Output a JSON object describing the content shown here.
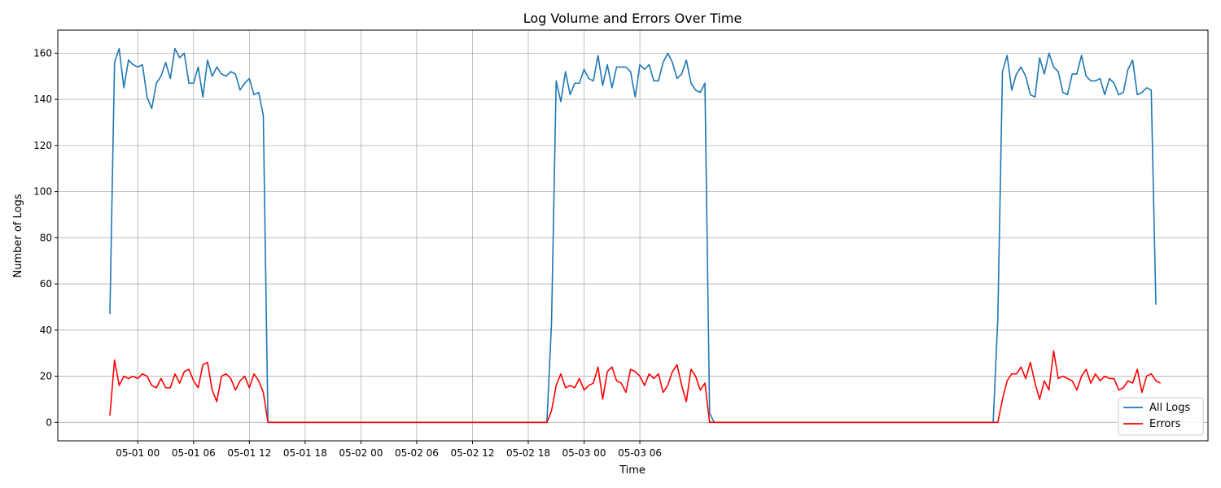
{
  "chart_data": {
    "type": "line",
    "title": "Log Volume and Errors Over Time",
    "xlabel": "Time",
    "ylabel": "Number of Logs",
    "x_start": "2024-04-30 21:00",
    "x_step_minutes": 30,
    "x_ticks": [
      "05-01 00",
      "05-01 06",
      "05-01 12",
      "05-01 18",
      "05-02 00",
      "05-02 06",
      "05-02 12",
      "05-02 18",
      "05-03 00",
      "05-03 06"
    ],
    "ylim": [
      -8,
      170
    ],
    "yticks": [
      0,
      20,
      40,
      60,
      80,
      100,
      120,
      140,
      160
    ],
    "grid": true,
    "legend_position": "bottom-right",
    "series": [
      {
        "name": "All Logs",
        "color": "#1f77b4",
        "values": [
          47,
          156,
          162,
          145,
          157,
          155,
          154,
          155,
          141,
          136,
          147,
          150,
          156,
          149,
          162,
          158,
          160,
          147,
          147,
          154,
          141,
          157,
          150,
          154,
          151,
          150,
          152,
          151,
          144,
          147,
          149,
          142,
          143,
          133,
          0,
          0,
          0,
          0,
          0,
          0,
          0,
          0,
          0,
          0,
          0,
          0,
          0,
          0,
          0,
          0,
          0,
          0,
          0,
          0,
          0,
          0,
          0,
          0,
          0,
          0,
          0,
          0,
          0,
          0,
          0,
          0,
          0,
          0,
          0,
          0,
          0,
          0,
          0,
          0,
          0,
          0,
          0,
          0,
          0,
          0,
          0,
          0,
          0,
          0,
          0,
          0,
          0,
          0,
          0,
          0,
          0,
          0,
          0,
          0,
          0,
          43,
          148,
          139,
          152,
          142,
          147,
          147,
          153,
          149,
          148,
          159,
          146,
          155,
          145,
          154,
          154,
          154,
          152,
          141,
          155,
          153,
          155,
          148,
          148,
          156,
          160,
          156,
          149,
          151,
          157,
          147,
          144,
          143,
          147,
          4,
          0,
          0,
          0,
          0,
          0,
          0,
          0,
          0,
          0,
          0,
          0,
          0,
          0,
          0,
          0,
          0,
          0,
          0,
          0,
          0,
          0,
          0,
          0,
          0,
          0,
          0,
          0,
          0,
          0,
          0,
          0,
          0,
          0,
          0,
          0,
          0,
          0,
          0,
          0,
          0,
          0,
          0,
          0,
          0,
          0,
          0,
          0,
          0,
          0,
          0,
          0,
          0,
          0,
          0,
          0,
          0,
          0,
          0,
          0,
          0,
          0,
          45,
          152,
          159,
          144,
          151,
          154,
          150,
          142,
          141,
          158,
          151,
          160,
          154,
          152,
          143,
          142,
          151,
          151,
          159,
          150,
          148,
          148,
          149,
          142,
          149,
          147,
          142,
          143,
          153,
          157,
          142,
          143,
          145,
          144,
          51
        ]
      },
      {
        "name": "Errors",
        "color": "#ff0000",
        "values": [
          3,
          27,
          16,
          20,
          19,
          20,
          19,
          21,
          20,
          16,
          15,
          19,
          15,
          15,
          21,
          17,
          22,
          23,
          18,
          15,
          25,
          26,
          14,
          9,
          20,
          21,
          19,
          14,
          18,
          20,
          15,
          21,
          18,
          13,
          0,
          0,
          0,
          0,
          0,
          0,
          0,
          0,
          0,
          0,
          0,
          0,
          0,
          0,
          0,
          0,
          0,
          0,
          0,
          0,
          0,
          0,
          0,
          0,
          0,
          0,
          0,
          0,
          0,
          0,
          0,
          0,
          0,
          0,
          0,
          0,
          0,
          0,
          0,
          0,
          0,
          0,
          0,
          0,
          0,
          0,
          0,
          0,
          0,
          0,
          0,
          0,
          0,
          0,
          0,
          0,
          0,
          0,
          0,
          0,
          0,
          5,
          16,
          21,
          15,
          16,
          15,
          19,
          14,
          16,
          17,
          24,
          10,
          22,
          24,
          18,
          17,
          13,
          23,
          22,
          20,
          16,
          21,
          19,
          21,
          13,
          16,
          22,
          25,
          16,
          9,
          23,
          20,
          14,
          17,
          0,
          0,
          0,
          0,
          0,
          0,
          0,
          0,
          0,
          0,
          0,
          0,
          0,
          0,
          0,
          0,
          0,
          0,
          0,
          0,
          0,
          0,
          0,
          0,
          0,
          0,
          0,
          0,
          0,
          0,
          0,
          0,
          0,
          0,
          0,
          0,
          0,
          0,
          0,
          0,
          0,
          0,
          0,
          0,
          0,
          0,
          0,
          0,
          0,
          0,
          0,
          0,
          0,
          0,
          0,
          0,
          0,
          0,
          0,
          0,
          0,
          0,
          0,
          10,
          18,
          21,
          21,
          24,
          19,
          26,
          17,
          10,
          18,
          14,
          31,
          19,
          20,
          19,
          18,
          14,
          20,
          23,
          17,
          21,
          18,
          20,
          19,
          19,
          14,
          15,
          18,
          17,
          23,
          13,
          20,
          21,
          18,
          17
        ]
      }
    ]
  }
}
